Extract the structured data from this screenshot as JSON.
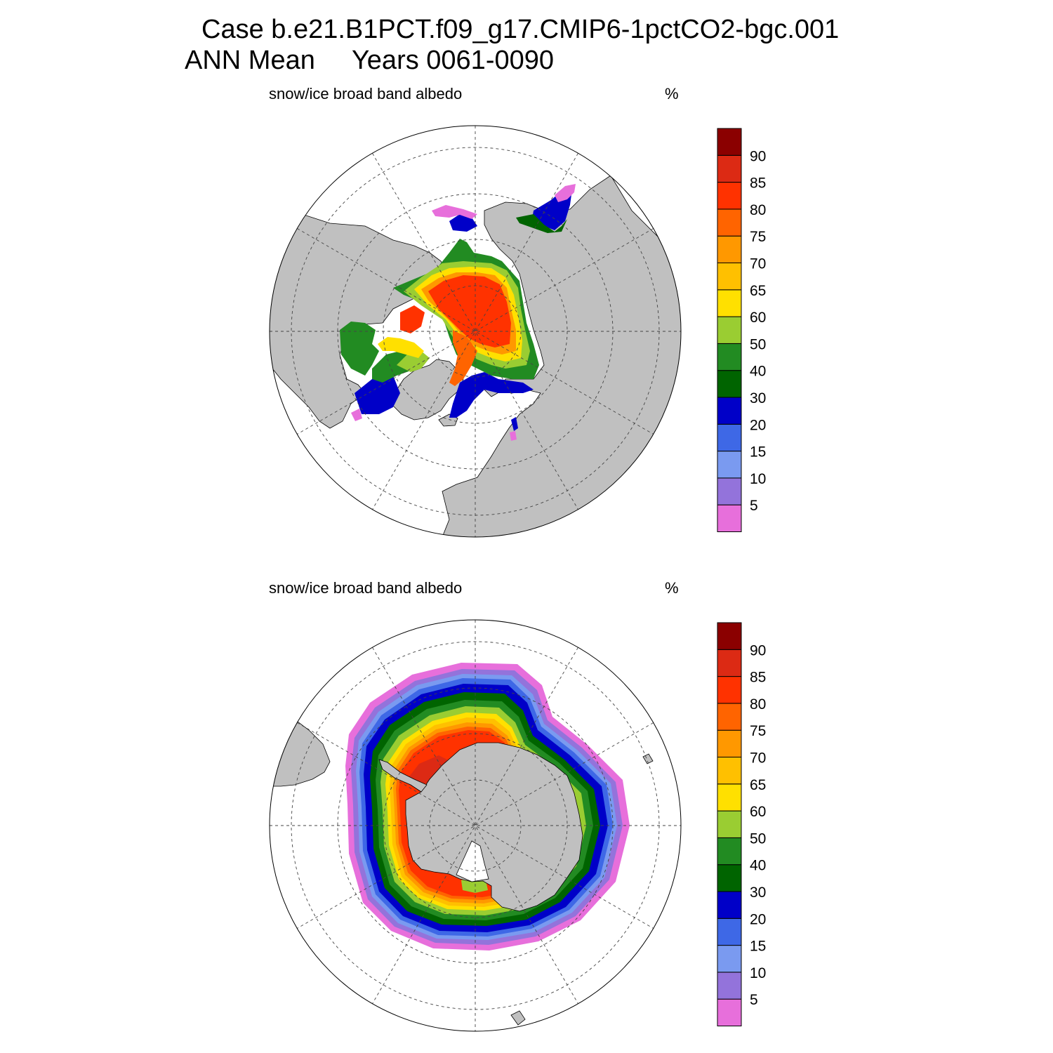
{
  "header": {
    "case_line": "Case b.e21.B1PCT.f09_g17.CMIP6-1pctCO2-bgc.001",
    "period_line": "ANN Mean     Years 0061-0090"
  },
  "colors": {
    "land": "#c0c0c0",
    "water": "#ffffff",
    "levels": [
      "#e76fdb",
      "#9373db",
      "#7a9af0",
      "#3e68e6",
      "#0000c8",
      "#006400",
      "#228b22",
      "#9acd32",
      "#ffe000",
      "#ffc000",
      "#ff9800",
      "#ff6400",
      "#ff3200",
      "#dc2a14",
      "#8b0000"
    ]
  },
  "colorbar_ticks": [
    "5",
    "10",
    "15",
    "20",
    "30",
    "40",
    "50",
    "60",
    "65",
    "70",
    "75",
    "80",
    "85",
    "90"
  ],
  "panels": [
    {
      "id": "nh",
      "hemisphere": "north",
      "variable": "snow/ice broad band albedo",
      "units": "%"
    },
    {
      "id": "sh",
      "hemisphere": "south",
      "variable": "snow/ice broad band albedo",
      "units": "%"
    }
  ]
}
